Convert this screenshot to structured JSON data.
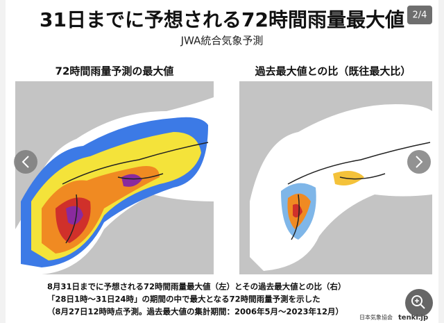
{
  "header": {
    "title": "31日までに予想される72時間雨量最大値",
    "subtitle": "JWA統合気象予測",
    "counter": "2/4"
  },
  "panels": [
    {
      "title": "72時間雨量予測の最大値"
    },
    {
      "title": "過去最大値との比（既往最大比）"
    }
  ],
  "caption": [
    "8月31日までに予想される72時間雨量最大値（左）とその過去最大値との比（右）",
    "「28日1時～31日24時」の期間の中で最大となる72時間雨量予測を示した",
    "（8月27日12時時点予測。過去最大値の集計期間：2006年5月～2023年12月）"
  ],
  "footer": {
    "org": "日本気象協会",
    "brand": "tenki.jp"
  }
}
